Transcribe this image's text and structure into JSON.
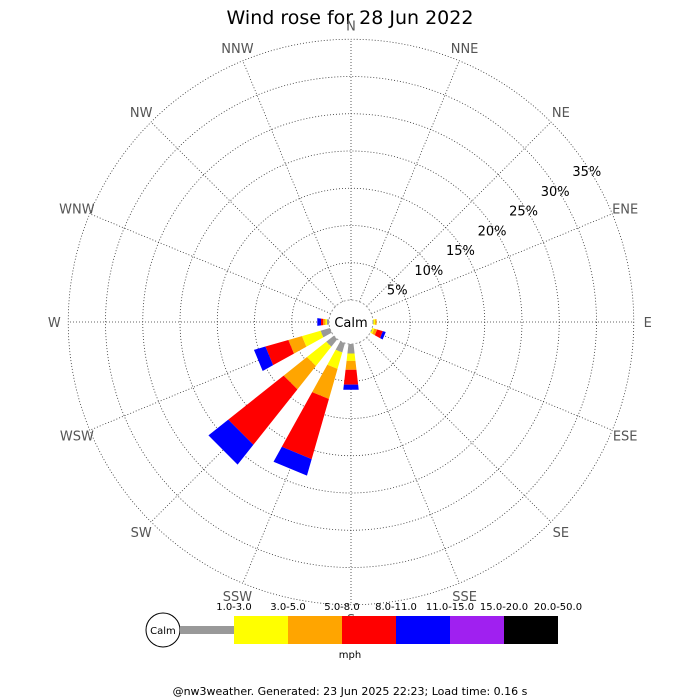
{
  "chart_data": {
    "type": "windrose",
    "title": "Wind rose for 28 Jun 2022",
    "unit": "%",
    "rings": [
      5,
      10,
      15,
      20,
      25,
      30,
      35
    ],
    "ring_labels": [
      "5%",
      "10%",
      "15%",
      "20%",
      "25%",
      "30%",
      "35%"
    ],
    "directions": [
      "N",
      "NNE",
      "NE",
      "ENE",
      "E",
      "ESE",
      "SE",
      "SSE",
      "S",
      "SSW",
      "SW",
      "WSW",
      "W",
      "WNW",
      "NW",
      "NNW"
    ],
    "calm_label": "Calm",
    "speed_bins": [
      {
        "name": "1.0-3.0",
        "color": "#999999"
      },
      {
        "name": "3.0-5.0",
        "color": "#ffff00"
      },
      {
        "name": "5.0-8.0",
        "color": "#ffa500"
      },
      {
        "name": "8.0-11.0",
        "color": "#ff0000"
      },
      {
        "name": "11.0-15.0",
        "color": "#0000ff"
      },
      {
        "name": "15.0-20.0",
        "color": "#a020f0"
      },
      {
        "name": "20.0-50.0",
        "color": "#000000"
      }
    ],
    "series": [
      {
        "direction": "N",
        "values": [
          0,
          0,
          0,
          0,
          0,
          0,
          0
        ]
      },
      {
        "direction": "NNE",
        "values": [
          0,
          0,
          0,
          0,
          0,
          0,
          0
        ]
      },
      {
        "direction": "NE",
        "values": [
          0,
          0,
          0,
          0,
          0,
          0,
          0
        ]
      },
      {
        "direction": "ENE",
        "values": [
          0,
          0,
          0,
          0,
          0,
          0,
          0
        ]
      },
      {
        "direction": "E",
        "values": [
          0,
          0.3,
          0.2,
          0,
          0,
          0,
          0
        ]
      },
      {
        "direction": "ESE",
        "values": [
          0,
          0.3,
          0.4,
          0.8,
          0.4,
          0,
          0
        ]
      },
      {
        "direction": "SE",
        "values": [
          0,
          0,
          0,
          0,
          0,
          0,
          0
        ]
      },
      {
        "direction": "SSE",
        "values": [
          0,
          0,
          0,
          0,
          0,
          0,
          0
        ]
      },
      {
        "direction": "S",
        "values": [
          1.3,
          1.0,
          1.2,
          2.0,
          0.7,
          0,
          0
        ]
      },
      {
        "direction": "SSW",
        "values": [
          1.3,
          2.3,
          4.2,
          8.4,
          2.3,
          0,
          0
        ]
      },
      {
        "direction": "SW",
        "values": [
          1.3,
          3.3,
          4.0,
          9.5,
          3.4,
          0,
          0
        ]
      },
      {
        "direction": "WSW",
        "values": [
          1.3,
          2.6,
          1.9,
          3.2,
          1.6,
          0,
          0
        ]
      },
      {
        "direction": "W",
        "values": [
          0.3,
          0.2,
          0.3,
          0.3,
          0.5,
          0,
          0
        ]
      },
      {
        "direction": "WNW",
        "values": [
          0,
          0,
          0,
          0,
          0,
          0,
          0
        ]
      },
      {
        "direction": "NW",
        "values": [
          0,
          0,
          0,
          0,
          0,
          0,
          0
        ]
      },
      {
        "direction": "NNW",
        "values": [
          0,
          0,
          0,
          0,
          0,
          0,
          0
        ]
      }
    ],
    "legend_unit": "mph",
    "legend_position": "bottom",
    "grid": true
  },
  "footer": "@nw3weather. Generated: 23 Jun 2025 22:23; Load time: 0.16 s"
}
